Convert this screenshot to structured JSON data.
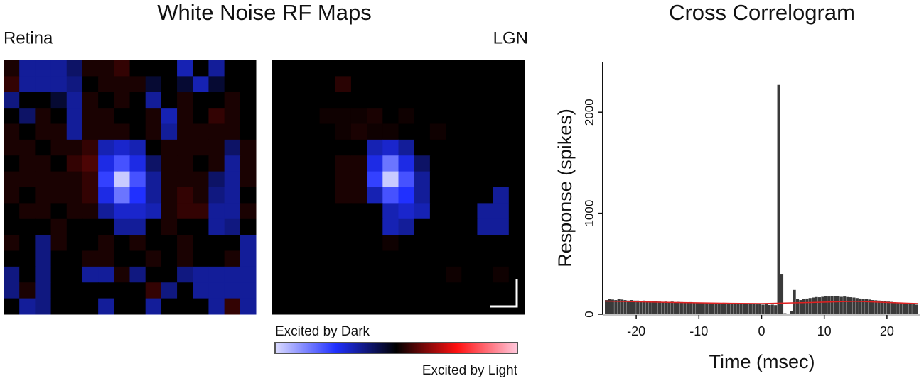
{
  "figure": {
    "title": "White Noise RF Maps",
    "colorbar": {
      "vlim": [
        -1,
        1
      ],
      "colors": [
        "#dcdcff",
        "#2030ff",
        "#000000",
        "#ff1010",
        "#ffc8dc"
      ],
      "label_low": "Excited by Dark",
      "label_high": "Excited by Light"
    }
  },
  "chart_data": [
    {
      "type": "heatmap",
      "title": "Retina",
      "values": [
        [
          0.05,
          -0.3,
          -0.3,
          -0.3,
          -0.2,
          0.05,
          0.05,
          0.1,
          0,
          0,
          0,
          -0.35,
          0,
          -0.3,
          0,
          0
        ],
        [
          0.1,
          -0.3,
          -0.3,
          -0.3,
          -0.25,
          0,
          0.05,
          0.05,
          0.05,
          -0.1,
          0,
          -0.1,
          -0.35,
          -0.1,
          0,
          0
        ],
        [
          -0.25,
          0,
          0,
          -0.1,
          -0.3,
          0.05,
          0,
          0.05,
          0,
          -0.3,
          0,
          0.05,
          0,
          0,
          0.05,
          0
        ],
        [
          0,
          -0.2,
          0.05,
          0,
          -0.3,
          0.05,
          0.05,
          0,
          0,
          0.05,
          -0.35,
          0.05,
          0,
          0.1,
          0.05,
          0
        ],
        [
          0.05,
          0,
          0.05,
          0.05,
          -0.3,
          0.05,
          0.05,
          0.05,
          0,
          0.05,
          -0.3,
          0.05,
          0.05,
          0.05,
          0.05,
          0
        ],
        [
          0.05,
          0.05,
          0,
          0.05,
          0.05,
          0.1,
          -0.35,
          -0.4,
          -0.35,
          0,
          0.05,
          0.05,
          0.05,
          0.05,
          -0.2,
          0.05
        ],
        [
          0,
          0.05,
          0.05,
          0,
          0.1,
          0.15,
          -0.45,
          -0.6,
          -0.45,
          -0.2,
          0.05,
          0.05,
          0,
          0.05,
          -0.3,
          0.05
        ],
        [
          0.05,
          0.05,
          0.05,
          0.05,
          0.05,
          0.1,
          -0.55,
          -0.95,
          -0.6,
          -0.3,
          0.05,
          0.05,
          0.05,
          -0.2,
          -0.3,
          0.05
        ],
        [
          0.05,
          0,
          0.05,
          0.05,
          0.05,
          0.1,
          -0.45,
          -0.7,
          -0.5,
          -0.3,
          0.05,
          0.1,
          0.05,
          -0.25,
          -0.3,
          0
        ],
        [
          0,
          0.05,
          0.05,
          0,
          0.05,
          0.05,
          -0.3,
          -0.4,
          -0.4,
          -0.35,
          0.05,
          0.1,
          0.1,
          -0.3,
          -0.3,
          0.05
        ],
        [
          0,
          0,
          0,
          0.05,
          0,
          0,
          0,
          -0.3,
          -0.3,
          0,
          0.05,
          0,
          0,
          -0.3,
          -0.25,
          0
        ],
        [
          0.05,
          0,
          -0.25,
          0.05,
          0,
          0,
          0.05,
          0,
          0.05,
          0,
          0,
          0.05,
          0,
          0,
          0,
          -0.3
        ],
        [
          0,
          0,
          -0.25,
          0,
          0,
          0.05,
          0.05,
          0,
          0,
          0.05,
          0,
          0.05,
          0,
          0,
          0.05,
          -0.3
        ],
        [
          -0.25,
          0,
          -0.25,
          0,
          0,
          -0.3,
          -0.3,
          0.05,
          -0.25,
          0,
          0,
          -0.25,
          -0.3,
          -0.3,
          -0.3,
          -0.3
        ],
        [
          -0.25,
          0.05,
          -0.25,
          0,
          0,
          0,
          0,
          0,
          0,
          0.1,
          -0.25,
          0,
          -0.3,
          -0.3,
          -0.3,
          -0.3
        ],
        [
          0,
          -0.3,
          -0.25,
          0,
          0,
          0,
          -0.3,
          0,
          0,
          -0.3,
          0,
          0,
          0,
          -0.3,
          0.1,
          -0.3
        ]
      ]
    },
    {
      "type": "heatmap",
      "title": "LGN",
      "values": [
        [
          0,
          0,
          0,
          0,
          0,
          0,
          0,
          0,
          0,
          0,
          0,
          0,
          0,
          0,
          0,
          0
        ],
        [
          0,
          0,
          0,
          0,
          0.08,
          0,
          0,
          0,
          0,
          0,
          0,
          0,
          0,
          0,
          0,
          0
        ],
        [
          0,
          0,
          0,
          0,
          0,
          0,
          0,
          0,
          0,
          0,
          0,
          0,
          0,
          0,
          0,
          0
        ],
        [
          0,
          0,
          0,
          0.03,
          0.03,
          0.03,
          0.05,
          0,
          0.03,
          0,
          0,
          0,
          0,
          0,
          0,
          0
        ],
        [
          0,
          0,
          0,
          0,
          0.03,
          0.05,
          0.03,
          0.03,
          0,
          0,
          0.03,
          0,
          0,
          0,
          0,
          0
        ],
        [
          0,
          0,
          0,
          0,
          0,
          0,
          -0.35,
          -0.4,
          -0.3,
          0,
          0,
          0,
          0,
          0,
          0,
          0
        ],
        [
          0,
          0,
          0,
          0,
          0.05,
          0.05,
          -0.45,
          -0.7,
          -0.45,
          -0.2,
          0,
          0,
          0,
          0,
          0,
          0
        ],
        [
          0,
          0,
          0,
          0,
          0.05,
          0.05,
          -0.55,
          -0.95,
          -0.6,
          -0.3,
          0,
          0,
          0,
          0,
          0,
          0
        ],
        [
          0,
          0,
          0,
          0,
          0.05,
          0.05,
          -0.35,
          -0.6,
          -0.5,
          -0.3,
          0,
          0,
          0,
          0,
          -0.3,
          0
        ],
        [
          0,
          0,
          0,
          0,
          0,
          0,
          0,
          -0.35,
          -0.4,
          -0.35,
          0,
          0,
          0,
          -0.3,
          -0.3,
          0
        ],
        [
          0,
          0,
          0,
          0,
          0,
          0,
          0,
          -0.35,
          -0.3,
          0,
          0,
          0,
          0,
          -0.3,
          -0.3,
          0
        ],
        [
          0,
          0,
          0,
          0,
          0,
          0,
          0,
          0.03,
          0,
          0,
          0,
          0,
          0,
          0,
          0,
          0
        ],
        [
          0,
          0,
          0,
          0,
          0,
          0,
          0,
          0,
          0,
          0,
          0,
          0,
          0,
          0,
          0,
          0
        ],
        [
          0,
          0,
          0,
          0,
          0,
          0,
          0,
          0,
          0,
          0,
          0,
          0.03,
          0,
          0,
          0.03,
          0
        ],
        [
          0,
          0,
          0,
          0,
          0,
          0,
          0,
          0,
          0,
          0,
          0,
          0,
          0,
          0,
          0,
          0
        ],
        [
          0,
          0,
          0,
          0,
          0,
          0,
          0,
          0,
          0,
          0,
          0,
          0,
          0,
          0,
          0,
          0
        ]
      ]
    },
    {
      "type": "histogram",
      "title": "Cross Correlogram",
      "xlabel": "Time (msec)",
      "ylabel": "Response (spikes)",
      "color": "#3a3a3a",
      "bins": [
        -25,
        -24.5,
        -24,
        -23.5,
        -23,
        -22.5,
        -22,
        -21.5,
        -21,
        -20.5,
        -20,
        -19.5,
        -19,
        -18.5,
        -18,
        -17.5,
        -17,
        -16.5,
        -16,
        -15.5,
        -15,
        -14.5,
        -14,
        -13.5,
        -13,
        -12.5,
        -12,
        -11.5,
        -11,
        -10.5,
        -10,
        -9.5,
        -9,
        -8.5,
        -8,
        -7.5,
        -7,
        -6.5,
        -6,
        -5.5,
        -5,
        -4.5,
        -4,
        -3.5,
        -3,
        -2.5,
        -2,
        -1.5,
        -1,
        -0.5,
        0,
        0.5,
        1,
        1.5,
        2,
        2.5,
        3,
        3.5,
        4,
        4.5,
        5,
        5.5,
        6,
        6.5,
        7,
        7.5,
        8,
        8.5,
        9,
        9.5,
        10,
        10.5,
        11,
        11.5,
        12,
        12.5,
        13,
        13.5,
        14,
        14.5,
        15,
        15.5,
        16,
        16.5,
        17,
        17.5,
        18,
        18.5,
        19,
        19.5,
        20,
        20.5,
        21,
        21.5,
        22,
        22.5,
        23,
        23.5,
        24,
        24.5,
        25
      ],
      "values": [
        140,
        150,
        145,
        140,
        150,
        145,
        140,
        135,
        140,
        135,
        135,
        130,
        135,
        130,
        125,
        130,
        128,
        125,
        120,
        125,
        120,
        125,
        118,
        122,
        120,
        115,
        118,
        120,
        115,
        112,
        115,
        110,
        112,
        108,
        110,
        105,
        110,
        108,
        105,
        110,
        105,
        108,
        102,
        105,
        100,
        104,
        100,
        102,
        98,
        100,
        95,
        98,
        92,
        95,
        90,
        2270,
        400,
        10,
        5,
        30,
        240,
        150,
        140,
        150,
        155,
        160,
        165,
        170,
        168,
        172,
        178,
        175,
        180,
        176,
        178,
        172,
        175,
        170,
        168,
        165,
        160,
        155,
        150,
        148,
        145,
        140,
        138,
        135,
        130,
        128,
        125,
        122,
        118,
        115,
        112,
        108,
        105,
        100,
        98,
        95
      ],
      "trend": {
        "x": [
          -25,
          -15,
          -5,
          0,
          5,
          15,
          25
        ],
        "values": [
          130,
          118,
          108,
          105,
          112,
          128,
          105
        ],
        "color": "#e02020"
      },
      "xlim": [
        -25,
        25
      ],
      "ylim": [
        0,
        2500
      ],
      "xticks": [
        -20,
        -10,
        0,
        10,
        20
      ],
      "yticks": [
        0,
        1000,
        2000
      ]
    }
  ]
}
